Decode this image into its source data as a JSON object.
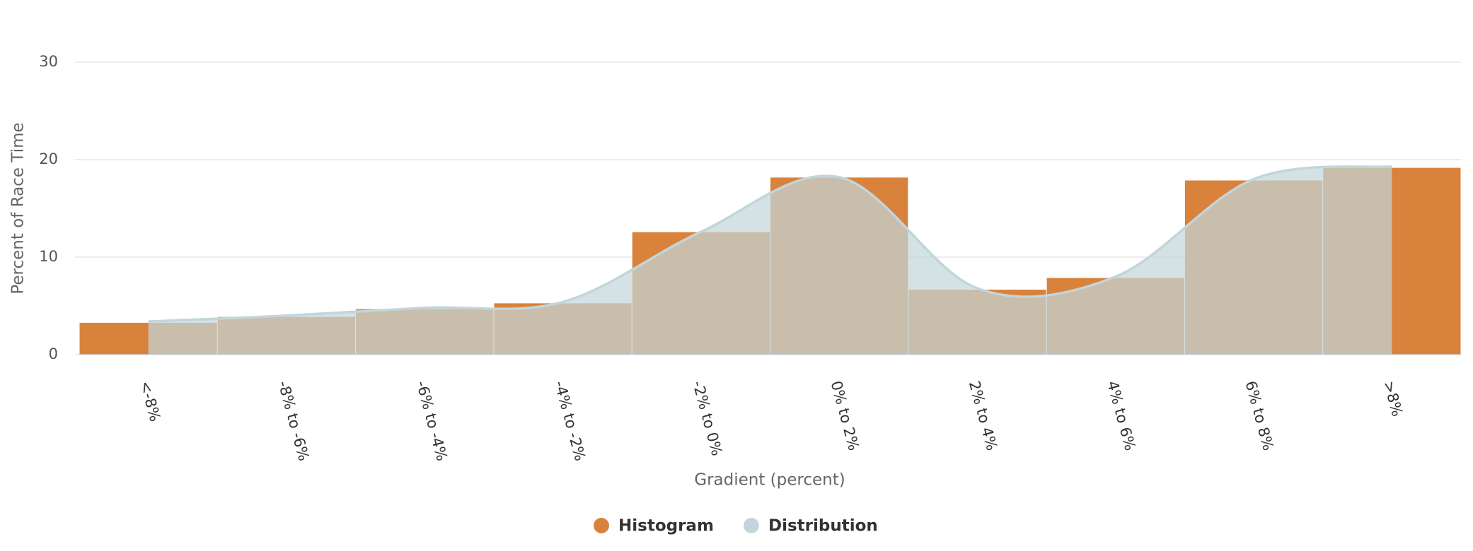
{
  "chart_data": {
    "type": "bar",
    "categories": [
      "<-8%",
      "-8% to -6%",
      "-6% to -4%",
      "-4% to -2%",
      "-2% to 0%",
      "0% to 2%",
      "2% to 4%",
      "4% to 6%",
      "6% to 8%",
      ">8%"
    ],
    "series": [
      {
        "name": "Histogram",
        "type": "column",
        "color": "#d9823b",
        "values": [
          3.3,
          3.9,
          4.7,
          5.3,
          12.6,
          18.2,
          6.7,
          7.9,
          17.9,
          19.2
        ]
      },
      {
        "name": "Distribution",
        "type": "areaspline",
        "color": "#c2d5db",
        "values": [
          3.4,
          4.0,
          4.8,
          5.4,
          12.6,
          18.2,
          6.8,
          8.0,
          18.0,
          19.3
        ]
      }
    ],
    "x_label": "Gradient (percent)",
    "y_label": "Percent of Race Time",
    "ylim": [
      0,
      30
    ],
    "yticks": [
      0,
      10,
      20,
      30
    ],
    "grid": true
  }
}
